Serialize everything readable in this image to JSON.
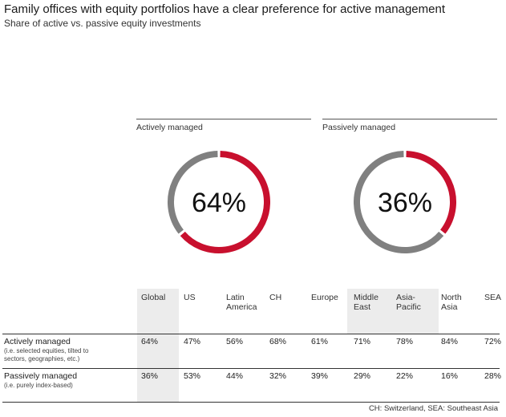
{
  "title": "Family offices with equity portfolios have a clear preference for active management",
  "subtitle": "Share of active vs. passive equity investments",
  "colors": {
    "accent": "#c8102e",
    "neutral": "#808080"
  },
  "chart_data": [
    {
      "type": "pie",
      "title": "Actively managed",
      "center_label": "64%",
      "slices": [
        {
          "value": 64,
          "color": "#c8102e"
        },
        {
          "value": 36,
          "color": "#808080"
        }
      ]
    },
    {
      "type": "pie",
      "title": "Passively managed",
      "center_label": "36%",
      "slices": [
        {
          "value": 36,
          "color": "#c8102e"
        },
        {
          "value": 64,
          "color": "#808080"
        }
      ]
    },
    {
      "type": "table",
      "columns": [
        "Global",
        "US",
        "Latin\nAmerica",
        "CH",
        "Europe",
        "Middle\nEast",
        "Asia-\nPacific",
        "North\nAsia",
        "SEA"
      ],
      "rows": [
        {
          "label": "Actively managed",
          "description": "(i.e. selected equities, tilted to sectors, geographies, etc.)",
          "values": [
            "64%",
            "47%",
            "56%",
            "68%",
            "61%",
            "71%",
            "78%",
            "84%",
            "72%"
          ]
        },
        {
          "label": "Passively managed",
          "description": "(i.e. purely index-based)",
          "values": [
            "36%",
            "53%",
            "44%",
            "32%",
            "39%",
            "29%",
            "22%",
            "16%",
            "28%"
          ]
        }
      ]
    }
  ],
  "footnote": "CH: Switzerland, SEA: Southeast Asia"
}
